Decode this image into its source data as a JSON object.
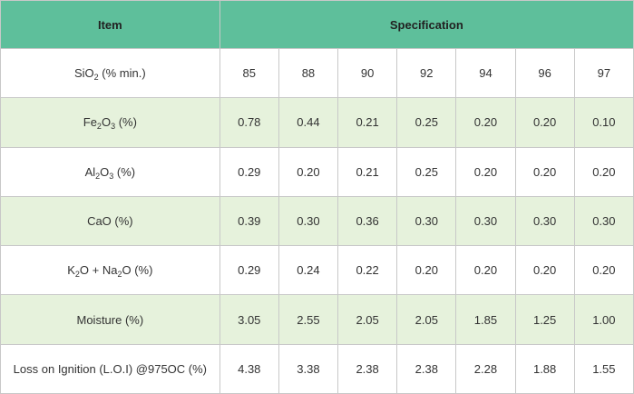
{
  "header": {
    "item_label": "Item",
    "spec_label": "Specification"
  },
  "rows": [
    {
      "label": {
        "p1": "SiO",
        "s1": "2",
        "p2": " (% min.)",
        "s2": "",
        "p3": ""
      },
      "values": [
        "85",
        "88",
        "90",
        "92",
        "94",
        "96",
        "97"
      ]
    },
    {
      "label": {
        "p1": "Fe",
        "s1": "2",
        "p2": "O",
        "s2": "3",
        "p3": " (%)"
      },
      "values": [
        "0.78",
        "0.44",
        "0.21",
        "0.25",
        "0.20",
        "0.20",
        "0.10"
      ]
    },
    {
      "label": {
        "p1": "Al",
        "s1": "2",
        "p2": "O",
        "s2": "3",
        "p3": " (%)"
      },
      "values": [
        "0.29",
        "0.20",
        "0.21",
        "0.25",
        "0.20",
        "0.20",
        "0.20"
      ]
    },
    {
      "label": {
        "p1": "CaO (%)",
        "s1": "",
        "p2": "",
        "s2": "",
        "p3": ""
      },
      "values": [
        "0.39",
        "0.30",
        "0.36",
        "0.30",
        "0.30",
        "0.30",
        "0.30"
      ]
    },
    {
      "label": {
        "p1": "K",
        "s1": "2",
        "p2": "O + Na",
        "s2": "2",
        "p3": "O (%)"
      },
      "values": [
        "0.29",
        "0.24",
        "0.22",
        "0.20",
        "0.20",
        "0.20",
        "0.20"
      ]
    },
    {
      "label": {
        "p1": "Moisture (%)",
        "s1": "",
        "p2": "",
        "s2": "",
        "p3": ""
      },
      "values": [
        "3.05",
        "2.55",
        "2.05",
        "2.05",
        "1.85",
        "1.25",
        "1.00"
      ]
    },
    {
      "label": {
        "p1": "Loss on Ignition (L.O.I) @975OC (%)",
        "s1": "",
        "p2": "",
        "s2": "",
        "p3": ""
      },
      "values": [
        "4.38",
        "3.38",
        "2.38",
        "2.38",
        "2.28",
        "1.88",
        "1.55"
      ]
    }
  ]
}
